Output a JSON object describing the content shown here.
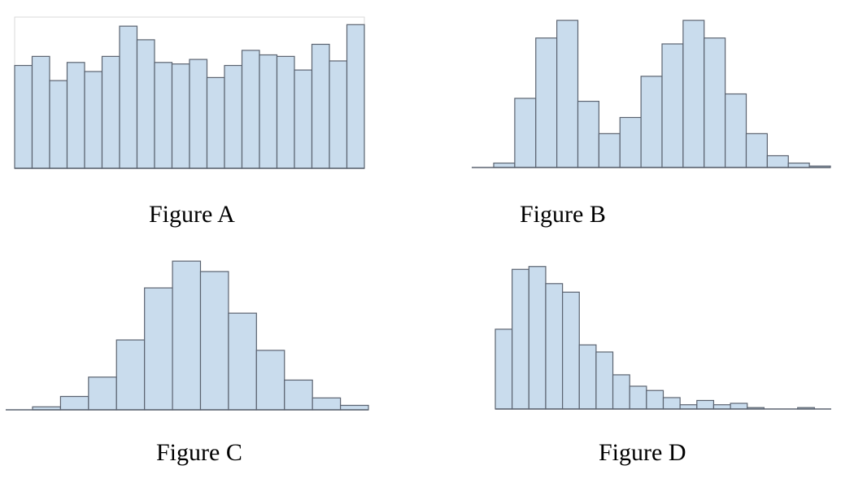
{
  "colors": {
    "bar_fill": "#c9dced",
    "bar_stroke": "#5b6370",
    "baseline": "#5b6370",
    "frame": "#d9d9d9"
  },
  "chart_data": [
    {
      "type": "bar",
      "title": "Figure A",
      "values": [
        68,
        74,
        58,
        70,
        64,
        74,
        94,
        85,
        70,
        69,
        72,
        60,
        68,
        78,
        75,
        74,
        65,
        82,
        71,
        95
      ],
      "ylim": [
        0,
        100
      ],
      "grid": false,
      "frame": true
    },
    {
      "type": "bar",
      "title": "Figure B",
      "values": [
        3,
        47,
        88,
        100,
        45,
        23,
        34,
        62,
        84,
        100,
        88,
        50,
        23,
        8,
        3,
        1
      ],
      "ylim": [
        0,
        105
      ],
      "grid": false,
      "frame": false
    },
    {
      "type": "bar",
      "title": "Figure C",
      "values": [
        2,
        9,
        22,
        47,
        82,
        100,
        93,
        65,
        40,
        20,
        8,
        3
      ],
      "ylim": [
        0,
        105
      ],
      "grid": false,
      "frame": false
    },
    {
      "type": "bar",
      "title": "Figure D",
      "values": [
        56,
        98,
        100,
        88,
        82,
        45,
        40,
        24,
        16,
        13,
        8,
        3,
        6,
        3,
        4,
        1,
        0,
        0,
        1,
        0
      ],
      "ylim": [
        0,
        105
      ],
      "grid": false,
      "frame": false
    }
  ]
}
